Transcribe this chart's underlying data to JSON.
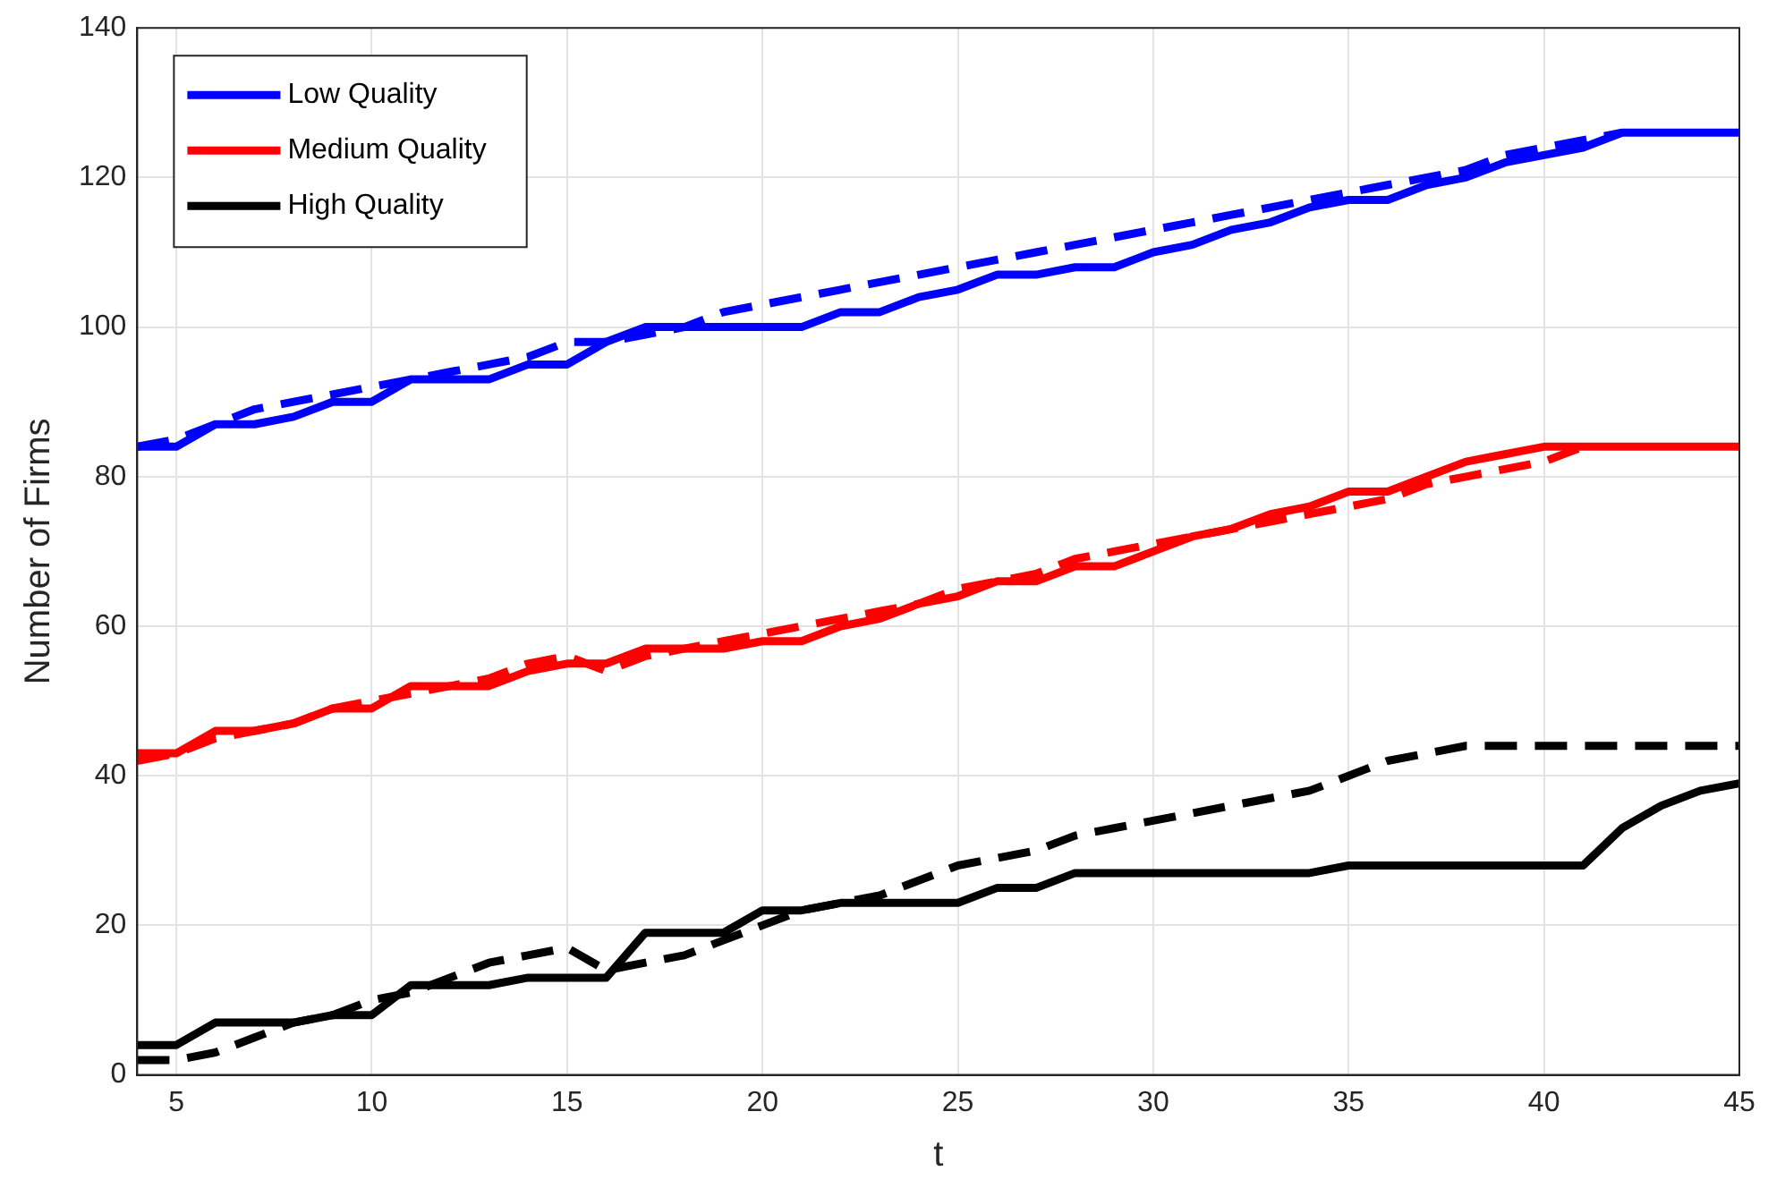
{
  "chart_data": {
    "type": "line",
    "xlabel": "t",
    "ylabel": "Number of Firms",
    "x": [
      4,
      5,
      6,
      7,
      8,
      9,
      10,
      11,
      12,
      13,
      14,
      15,
      16,
      17,
      18,
      19,
      20,
      21,
      22,
      23,
      24,
      25,
      26,
      27,
      28,
      29,
      30,
      31,
      32,
      33,
      34,
      35,
      36,
      37,
      38,
      39,
      40,
      41,
      42,
      43,
      44,
      45
    ],
    "xlim": [
      4,
      45
    ],
    "xticks": [
      5,
      10,
      15,
      20,
      25,
      30,
      35,
      40,
      45
    ],
    "ylim": [
      0,
      140
    ],
    "yticks": [
      0,
      20,
      40,
      60,
      80,
      100,
      120,
      140
    ],
    "grid": true,
    "legend": "top left",
    "marker": "none",
    "series": [
      {
        "name": "Low Quality",
        "color": "#0000ff",
        "line_style": "solid",
        "values": [
          84,
          84,
          87,
          87,
          88,
          90,
          90,
          93,
          93,
          93,
          95,
          95,
          98,
          100,
          100,
          100,
          100,
          100,
          102,
          102,
          104,
          105,
          107,
          107,
          108,
          108,
          110,
          111,
          113,
          114,
          116,
          117,
          117,
          119,
          120,
          122,
          123,
          124,
          126,
          126,
          126,
          126
        ]
      },
      {
        "name": "Medium Quality",
        "color": "#ff0000",
        "line_style": "solid",
        "values": [
          43,
          43,
          46,
          46,
          47,
          49,
          49,
          52,
          52,
          52,
          54,
          55,
          55,
          57,
          57,
          57,
          58,
          58,
          60,
          61,
          63,
          64,
          66,
          66,
          68,
          68,
          70,
          72,
          73,
          75,
          76,
          78,
          78,
          80,
          82,
          83,
          84,
          84,
          84,
          84,
          84,
          84
        ]
      },
      {
        "name": "High Quality",
        "color": "#000000",
        "line_style": "solid",
        "values": [
          4,
          4,
          7,
          7,
          7,
          8,
          8,
          12,
          12,
          12,
          13,
          13,
          13,
          19,
          19,
          19,
          22,
          22,
          23,
          23,
          23,
          23,
          25,
          25,
          27,
          27,
          27,
          27,
          27,
          27,
          27,
          28,
          28,
          28,
          28,
          28,
          28,
          28,
          33,
          36,
          38,
          39
        ]
      },
      {
        "color": "#0000ff",
        "line_style": "dashed",
        "x": [
          4,
          5,
          6,
          7,
          8,
          9,
          10,
          11,
          12,
          13,
          14,
          15,
          16,
          17,
          18,
          19,
          20,
          21,
          22,
          23,
          24,
          25,
          26,
          27,
          28,
          29,
          30,
          31,
          32,
          33,
          34,
          35,
          36,
          37,
          38,
          39,
          40,
          41,
          42
        ],
        "values": [
          84,
          85,
          87,
          89,
          90,
          91,
          92,
          93,
          94,
          95,
          96,
          98,
          98,
          99,
          100,
          102,
          103,
          104,
          105,
          106,
          107,
          108,
          109,
          110,
          111,
          112,
          113,
          114,
          115,
          116,
          117,
          118,
          119,
          120,
          121,
          123,
          124,
          125,
          126
        ]
      },
      {
        "color": "#ff0000",
        "line_style": "dashed",
        "x": [
          4,
          5,
          6,
          7,
          8,
          9,
          10,
          11,
          12,
          13,
          14,
          15,
          16,
          17,
          18,
          19,
          20,
          21,
          22,
          23,
          24,
          25,
          26,
          27,
          28,
          29,
          30,
          31,
          32,
          33,
          34,
          35,
          36,
          37,
          38,
          39,
          40,
          41
        ],
        "values": [
          42,
          43,
          45,
          46,
          47,
          49,
          50,
          51,
          52,
          53,
          55,
          56,
          54,
          56,
          57,
          58,
          59,
          60,
          61,
          62,
          63,
          65,
          66,
          67,
          69,
          70,
          71,
          72,
          73,
          74,
          75,
          76,
          77,
          79,
          80,
          81,
          82,
          84
        ]
      },
      {
        "color": "#000000",
        "line_style": "dashed",
        "values": [
          2,
          2,
          3,
          5,
          7,
          8,
          10,
          11,
          13,
          15,
          16,
          17,
          14,
          15,
          16,
          18,
          20,
          22,
          23,
          24,
          26,
          28,
          29,
          30,
          32,
          33,
          34,
          35,
          36,
          37,
          38,
          40,
          42,
          43,
          44,
          44,
          44,
          44,
          44,
          44,
          44,
          44
        ]
      }
    ]
  }
}
